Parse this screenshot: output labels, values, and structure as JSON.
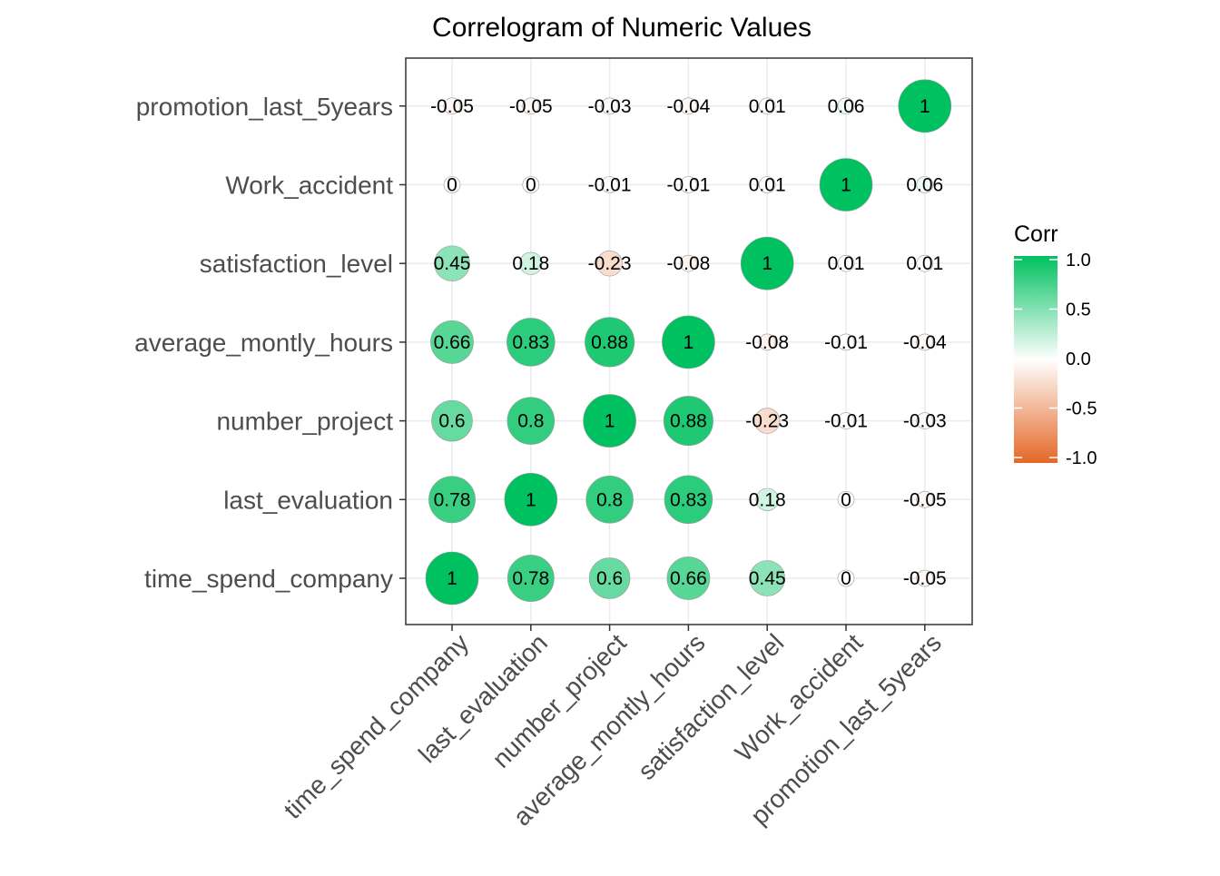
{
  "chart_data": {
    "type": "heatmap",
    "title": "Correlogram of Numeric Values",
    "variables": [
      "time_spend_company",
      "last_evaluation",
      "number_project",
      "average_montly_hours",
      "satisfaction_level",
      "Work_accident",
      "promotion_last_5years"
    ],
    "matrix": [
      [
        1,
        0.78,
        0.6,
        0.66,
        0.45,
        0,
        -0.05
      ],
      [
        0.78,
        1,
        0.8,
        0.83,
        0.18,
        0,
        -0.05
      ],
      [
        0.6,
        0.8,
        1,
        0.88,
        -0.23,
        -0.01,
        -0.03
      ],
      [
        0.66,
        0.83,
        0.88,
        1,
        -0.08,
        -0.01,
        -0.04
      ],
      [
        0.45,
        0.18,
        -0.23,
        -0.08,
        1,
        0.01,
        0.01
      ],
      [
        0,
        0,
        -0.01,
        -0.01,
        0.01,
        1,
        0.06
      ],
      [
        -0.05,
        -0.05,
        -0.03,
        -0.04,
        0.01,
        0.06,
        1
      ]
    ],
    "legend": {
      "title": "Corr",
      "ticks": [
        "1.0",
        "0.5",
        "0.0",
        "-0.5",
        "-1.0"
      ],
      "range": [
        -1,
        1
      ],
      "placement": "right"
    },
    "colors": {
      "low": "#E46726",
      "mid": "#FFFFFF",
      "high": "#00C160"
    },
    "grid": true
  }
}
